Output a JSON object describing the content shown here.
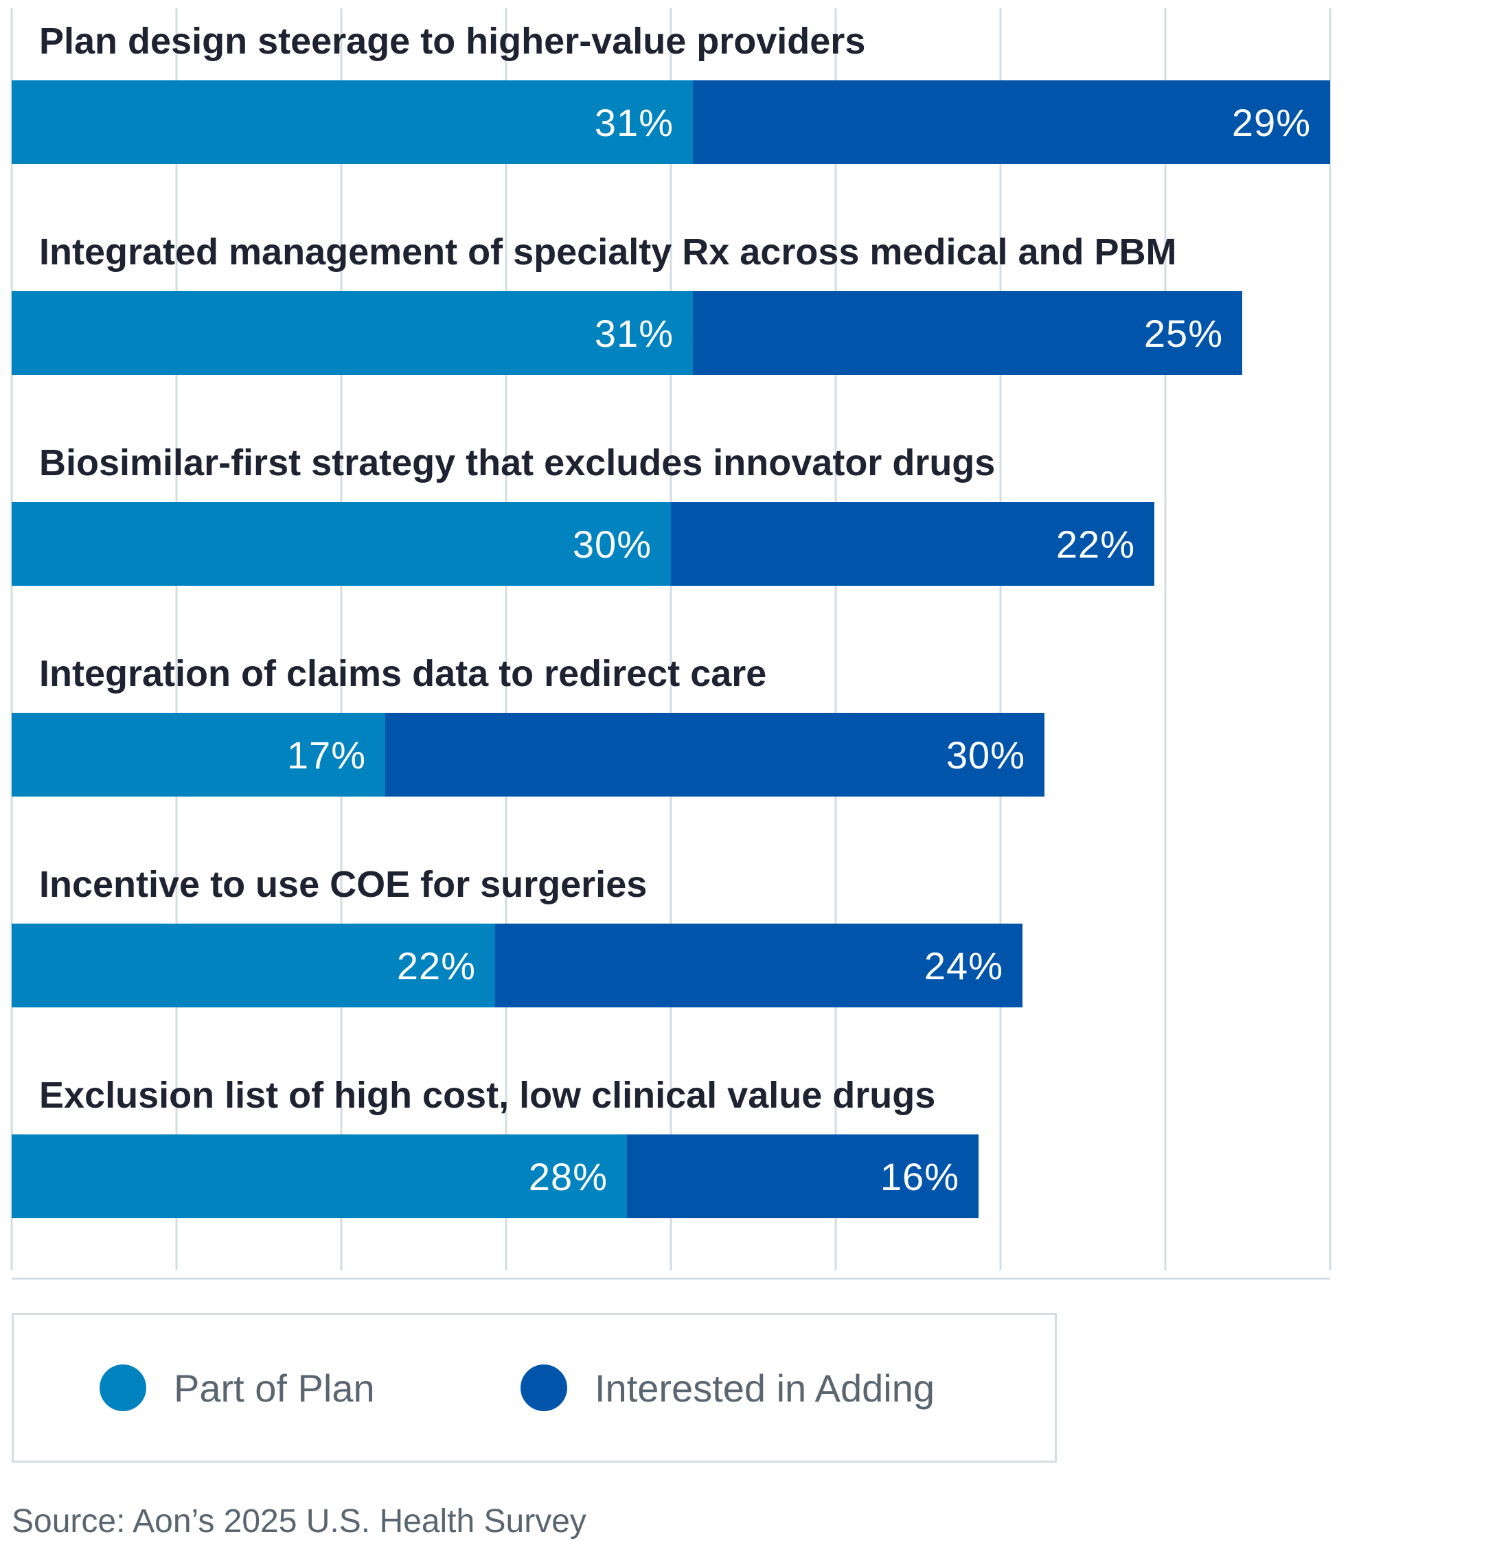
{
  "chart_data": {
    "type": "bar",
    "orientation": "horizontal",
    "stacked": true,
    "categories": [
      "Plan design steerage to higher-value providers",
      "Integrated management of specialty Rx across medical and PBM",
      "Biosimilar-first strategy that excludes innovator drugs",
      "Integration of claims data to redirect care",
      "Incentive to use COE for surgeries",
      "Exclusion list of high cost, low clinical value drugs"
    ],
    "series": [
      {
        "name": "Part of Plan",
        "values": [
          31,
          31,
          30,
          17,
          22,
          28
        ],
        "labels": [
          "31%",
          "31%",
          "30%",
          "17%",
          "22%",
          "28%"
        ]
      },
      {
        "name": "Interested in Adding",
        "values": [
          29,
          25,
          22,
          30,
          24,
          16
        ],
        "labels": [
          "29%",
          "25%",
          "22%",
          "30%",
          "24%",
          "16%"
        ]
      }
    ],
    "xlim": [
      0,
      60
    ],
    "grid": true,
    "legend": "bottom",
    "colors": {
      "part_of_plan": "#0083bf",
      "interested_in_adding": "#0055aa",
      "grid": "#d3dde3"
    }
  },
  "legend": {
    "items": [
      {
        "label": "Part of Plan",
        "color": "#0083bf"
      },
      {
        "label": "Interested in Adding",
        "color": "#0055aa"
      }
    ]
  },
  "source": "Source: Aon’s 2025 U.S. Health Survey"
}
